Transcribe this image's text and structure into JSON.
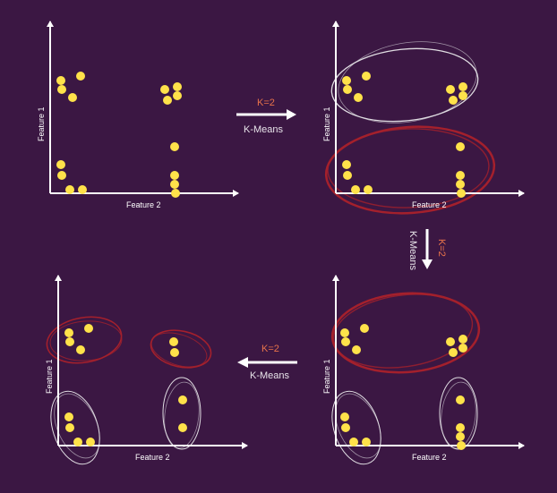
{
  "colors": {
    "background": "#3b1743",
    "point": "#ffe24a",
    "axis": "#ffffff",
    "cluster_red": "#a4202c",
    "cluster_white": "#e0dde2",
    "k_label": "#e8734a"
  },
  "panels": {
    "top_left": {
      "xlabel": "Feature 2",
      "ylabel": "Feature 1"
    },
    "top_right": {
      "xlabel": "Feature 2",
      "ylabel": "Feature 1"
    },
    "bottom_right": {
      "xlabel": "Feature 2",
      "ylabel": "Feature 1"
    },
    "bottom_left": {
      "xlabel": "Feature 2",
      "ylabel": "Feature 1"
    }
  },
  "steps": {
    "step1": {
      "k": "K=2",
      "method": "K-Means",
      "direction": "right"
    },
    "step2": {
      "k": "K=2",
      "method": "K-Means",
      "direction": "down"
    },
    "step3": {
      "k": "K=2",
      "method": "K-Means",
      "direction": "left"
    }
  }
}
